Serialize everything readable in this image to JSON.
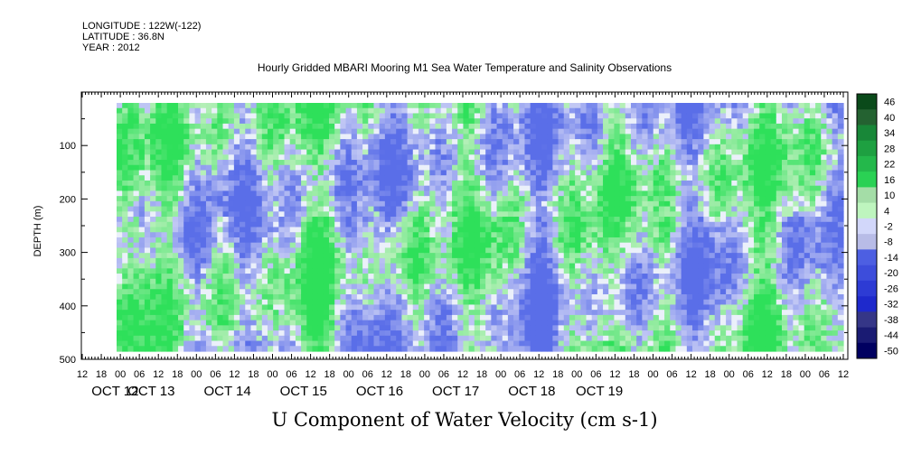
{
  "meta": {
    "longitude": "LONGITUDE : 122W(-122)",
    "latitude": "LATITUDE : 36.8N",
    "year": "YEAR : 2012"
  },
  "chart_data": {
    "type": "heatmap",
    "title": "Hourly Gridded MBARI Mooring M1 Sea Water Temperature and Salinity Observations",
    "xlabel": "U Component of Water Velocity (cm s-1)",
    "ylabel": "DEPTH (m)",
    "y_axis": {
      "range": [
        0,
        500
      ],
      "inverted": true,
      "ticks": [
        100,
        200,
        300,
        400,
        500
      ]
    },
    "x_axis": {
      "hour_labels": [
        "12",
        "18",
        "00",
        "06",
        "12",
        "18",
        "00",
        "06",
        "12",
        "18",
        "00",
        "06",
        "12",
        "18",
        "00",
        "06",
        "12",
        "18",
        "00",
        "06",
        "12",
        "18",
        "00",
        "06",
        "12",
        "18",
        "00",
        "06",
        "12",
        "18",
        "00",
        "06",
        "12",
        "18",
        "00",
        "06",
        "12",
        "18",
        "00",
        "06",
        "12"
      ],
      "day_labels": [
        "OCT 12",
        "OCT 13",
        "OCT 14",
        "OCT 15",
        "OCT 16",
        "OCT 17",
        "OCT 18",
        "OCT 19"
      ]
    },
    "colorbar": {
      "levels": [
        "46",
        "40",
        "34",
        "28",
        "22",
        "16",
        "10",
        "4",
        "-2",
        "-8",
        "-14",
        "-20",
        "-26",
        "-32",
        "-38",
        "-44",
        "-50"
      ],
      "positive_color": "#2ee05a",
      "negative_color": "#5a6ee8",
      "extreme_positive": "#0a4a1a",
      "extreme_negative": "#000060"
    }
  }
}
